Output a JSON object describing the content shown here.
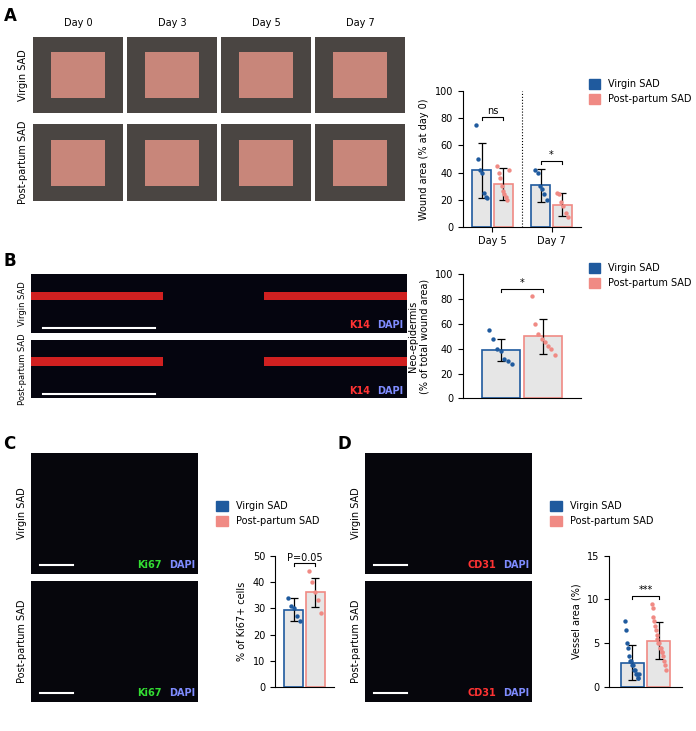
{
  "image_panels": {
    "A": {
      "panel_label": "A",
      "columns": [
        "Day 0",
        "Day 3",
        "Day 5",
        "Day 7"
      ],
      "rows": [
        "Virgin SAD",
        "Post-partum SAD"
      ]
    },
    "B": {
      "panel_label": "B",
      "rows": [
        "Virgin SAD",
        "Post-partum SAD"
      ],
      "stain": [
        {
          "text": "K14",
          "color": "#ff3333"
        },
        {
          "text": "DAPI",
          "color": "#7f8cff"
        }
      ]
    },
    "C": {
      "panel_label": "C",
      "rows": [
        "Virgin SAD",
        "Post-partum SAD"
      ],
      "stain": [
        {
          "text": "Ki67",
          "color": "#33dd33"
        },
        {
          "text": "DAPI",
          "color": "#7f8cff"
        }
      ]
    },
    "D": {
      "panel_label": "D",
      "rows": [
        "Virgin SAD",
        "Post-partum SAD"
      ],
      "stain": [
        {
          "text": "CD31",
          "color": "#ff3333"
        },
        {
          "text": "DAPI",
          "color": "#7f8cff"
        }
      ]
    }
  },
  "chart_data": [
    {
      "type": "bar",
      "ylabel": "Wound area (% at day 0)",
      "categories": [
        "Day 5",
        "Day 7"
      ],
      "ylim": [
        0,
        100
      ],
      "yticks": [
        0,
        20,
        40,
        60,
        80,
        100
      ],
      "legend": "right",
      "series": [
        {
          "name": "Virgin SAD",
          "color": "#1f5a9e",
          "values": [
            41.5,
            30.5
          ],
          "errors": [
            20.5,
            12
          ],
          "points": [
            [
              75,
              50,
              42,
              40,
              25,
              22,
              21
            ],
            [
              42,
              40,
              30,
              28,
              24,
              20
            ]
          ]
        },
        {
          "name": "Post-partum SAD",
          "color": "#f08a84",
          "values": [
            31.5,
            16
          ],
          "errors": [
            11.5,
            8.5
          ],
          "points": [
            [
              45,
              40,
              36,
              30,
              26,
              24,
              22,
              20,
              42
            ],
            [
              25,
              24,
              18,
              15,
              10,
              7
            ]
          ]
        }
      ],
      "annotations": [
        {
          "category": 0,
          "text": "ns"
        },
        {
          "category": 1,
          "text": "*"
        }
      ]
    },
    {
      "type": "bar",
      "ylabel": "Neo-epidermis\n(% of total wound area)",
      "categories": [
        null
      ],
      "ylim": [
        0,
        100
      ],
      "yticks": [
        0,
        20,
        40,
        60,
        80,
        100
      ],
      "legend": "right",
      "series": [
        {
          "name": "Virgin SAD",
          "color": "#1f5a9e",
          "values": [
            39
          ],
          "errors": [
            9
          ],
          "points": [
            [
              55,
              48,
              40,
              38,
              32,
              30,
              28
            ]
          ]
        },
        {
          "name": "Post-partum SAD",
          "color": "#f08a84",
          "values": [
            50
          ],
          "errors": [
            14
          ],
          "points": [
            [
              82,
              60,
              52,
              48,
              45,
              42,
              40,
              35
            ]
          ]
        }
      ],
      "annotations": [
        {
          "category": 0,
          "text": "*"
        }
      ]
    },
    {
      "type": "bar",
      "ylabel": "% of Ki67+ cells",
      "categories": [
        null
      ],
      "ylim": [
        0,
        50
      ],
      "yticks": [
        0,
        10,
        20,
        30,
        40,
        50
      ],
      "legend": "top",
      "series": [
        {
          "name": "Virgin SAD",
          "color": "#1f5a9e",
          "values": [
            29.5
          ],
          "errors": [
            4.5
          ],
          "points": [
            [
              34,
              31,
              30,
              27,
              25
            ]
          ]
        },
        {
          "name": "Post-partum SAD",
          "color": "#f08a84",
          "values": [
            36
          ],
          "errors": [
            5.5
          ],
          "points": [
            [
              44,
              40,
              36,
              33,
              28
            ]
          ]
        }
      ],
      "annotations": [
        {
          "category": 0,
          "text": "P=0.05"
        }
      ]
    },
    {
      "type": "bar",
      "ylabel": "Vessel area (%)",
      "categories": [
        null
      ],
      "ylim": [
        0,
        15
      ],
      "yticks": [
        0,
        5,
        10,
        15
      ],
      "legend": "top",
      "series": [
        {
          "name": "Virgin SAD",
          "color": "#1f5a9e",
          "values": [
            2.8
          ],
          "errors": [
            2
          ],
          "points": [
            [
              7.5,
              6.5,
              5,
              4.5,
              3.5,
              3,
              3,
              2.5,
              2.5,
              2,
              2,
              1.5,
              1.5,
              1,
              1,
              1.5
            ]
          ]
        },
        {
          "name": "Post-partum SAD",
          "color": "#f08a84",
          "values": [
            5.3
          ],
          "errors": [
            2.1
          ],
          "points": [
            [
              9.5,
              9,
              8,
              7.5,
              7,
              6.5,
              6,
              5.5,
              5,
              5,
              4.5,
              4.5,
              4,
              4,
              3.5,
              3,
              2.5,
              2
            ]
          ]
        }
      ],
      "annotations": [
        {
          "category": 0,
          "text": "***"
        }
      ]
    }
  ]
}
